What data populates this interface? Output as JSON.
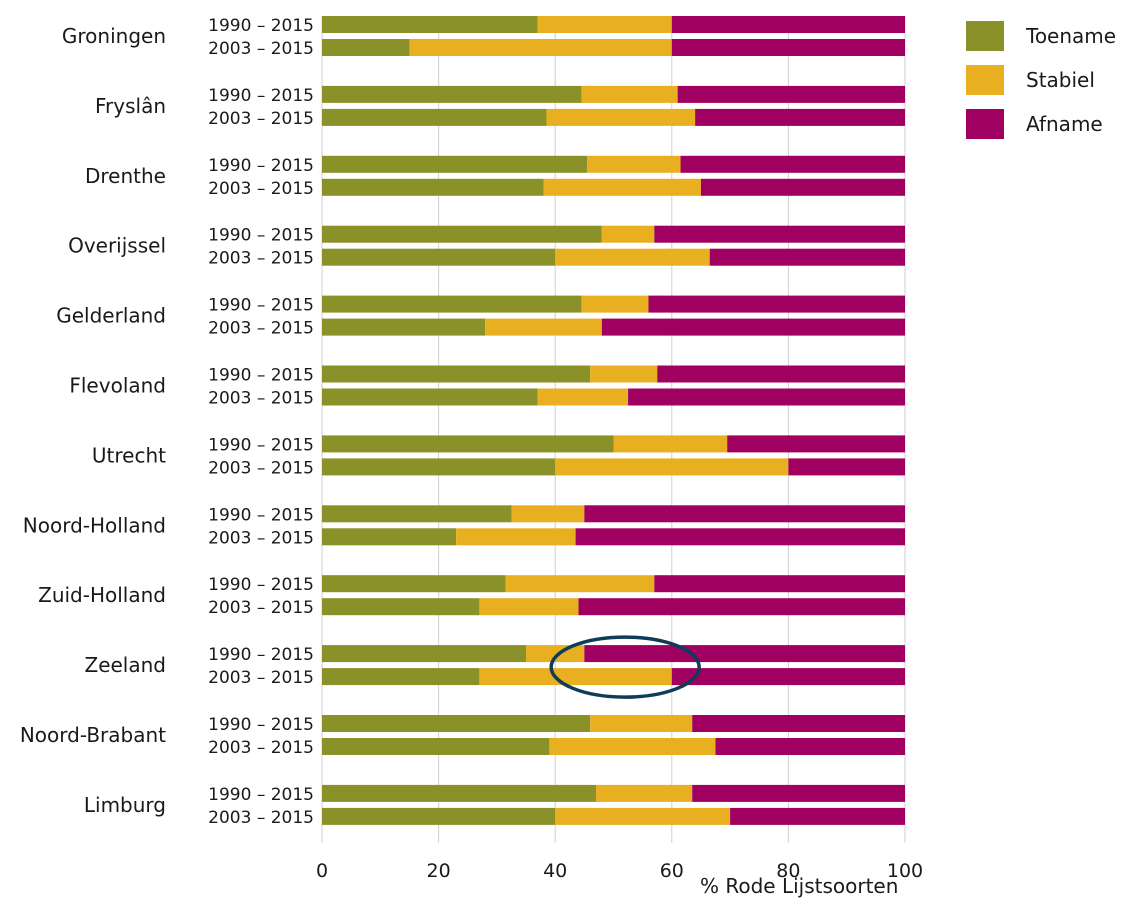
{
  "chart_data": {
    "type": "bar",
    "stacked": true,
    "orientation": "horizontal",
    "xlabel": "% Rode Lijstsoorten",
    "xlim": [
      0,
      100
    ],
    "xticks": [
      "0",
      "20",
      "40",
      "60",
      "80",
      "100"
    ],
    "grid": true,
    "legend_position": "top-right",
    "period_labels": [
      "1990 – 2015",
      "2003 – 2015"
    ],
    "series": [
      {
        "name": "Toename",
        "color": "#8a9128"
      },
      {
        "name": "Stabiel",
        "color": "#e8b021"
      },
      {
        "name": "Afname",
        "color": "#a0005f"
      }
    ],
    "provinces": [
      {
        "name": "Groningen",
        "bars": [
          [
            37,
            23,
            40
          ],
          [
            15,
            45,
            40
          ]
        ]
      },
      {
        "name": "Fryslân",
        "bars": [
          [
            44.5,
            16.5,
            39
          ],
          [
            38.5,
            25.5,
            36
          ]
        ]
      },
      {
        "name": "Drenthe",
        "bars": [
          [
            45.5,
            16,
            38.5
          ],
          [
            38,
            27,
            35
          ]
        ]
      },
      {
        "name": "Overijssel",
        "bars": [
          [
            48,
            9,
            43
          ],
          [
            40,
            26.5,
            33.5
          ]
        ]
      },
      {
        "name": "Gelderland",
        "bars": [
          [
            44.5,
            11.5,
            44
          ],
          [
            28,
            20,
            52
          ]
        ]
      },
      {
        "name": "Flevoland",
        "bars": [
          [
            46,
            11.5,
            42.5
          ],
          [
            37,
            15.5,
            47.5
          ]
        ]
      },
      {
        "name": "Utrecht",
        "bars": [
          [
            50,
            19.5,
            30.5
          ],
          [
            40,
            40,
            20
          ]
        ]
      },
      {
        "name": "Noord-Holland",
        "bars": [
          [
            32.5,
            12.5,
            55
          ],
          [
            23,
            20.5,
            56.5
          ]
        ]
      },
      {
        "name": "Zuid-Holland",
        "bars": [
          [
            31.5,
            25.5,
            43
          ],
          [
            27,
            17,
            56
          ]
        ]
      },
      {
        "name": "Zeeland",
        "bars": [
          [
            35,
            10,
            55
          ],
          [
            27,
            33,
            40
          ]
        ]
      },
      {
        "name": "Noord-Brabant",
        "bars": [
          [
            46,
            17.5,
            36.5
          ],
          [
            39,
            28.5,
            32.5
          ]
        ]
      },
      {
        "name": "Limburg",
        "bars": [
          [
            47,
            16.5,
            36.5
          ],
          [
            40,
            30,
            30
          ]
        ]
      }
    ],
    "annotation": {
      "type": "ellipse",
      "target": "Zeeland",
      "color": "#0e3d5a"
    }
  }
}
